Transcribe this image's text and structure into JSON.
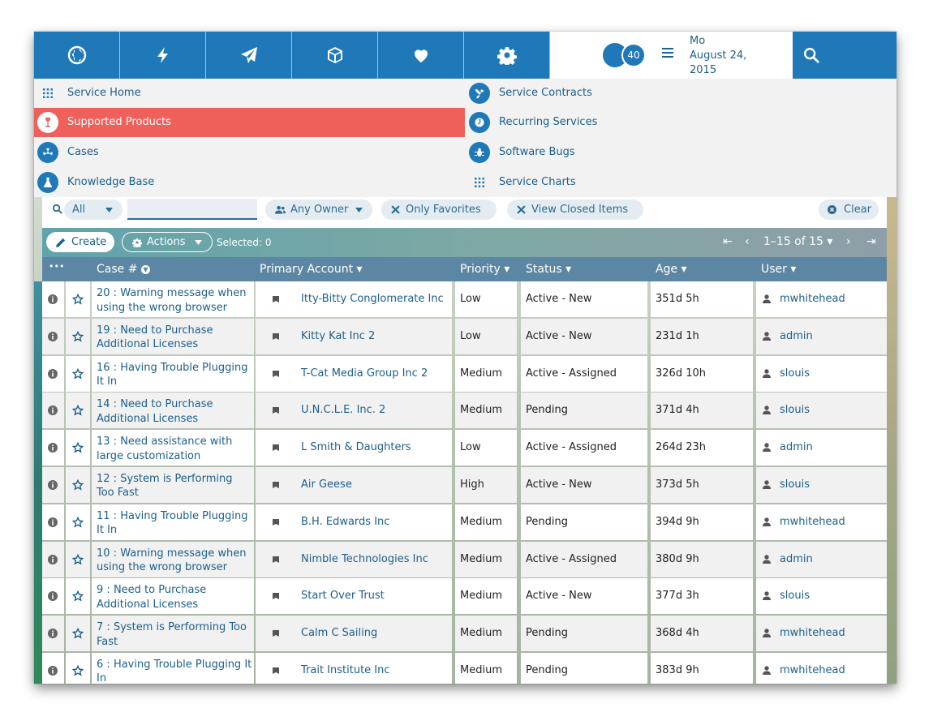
{
  "topbar": {
    "nav_icons": [
      "globe-icon",
      "lightning-icon",
      "paper-plane-icon",
      "cube-icon",
      "heart-icon",
      "gear-icon"
    ],
    "notification_count": "40",
    "date_line1": "Mo",
    "date_line2": "August 24,",
    "date_line3": "2015",
    "search_icon": "search-icon"
  },
  "menu": {
    "left": [
      {
        "label": "Service Home",
        "icon": "grid-icon"
      },
      {
        "label": "Supported Products",
        "icon": "wine-glass-icon",
        "active": true
      },
      {
        "label": "Cases",
        "icon": "radiation-icon"
      },
      {
        "label": "Knowledge Base",
        "icon": "flask-icon"
      }
    ],
    "right": [
      {
        "label": "Service Contracts",
        "icon": "tools-icon"
      },
      {
        "label": "Recurring Services",
        "icon": "clock-icon"
      },
      {
        "label": "Software Bugs",
        "icon": "bug-icon"
      },
      {
        "label": "Service Charts",
        "icon": "grid-icon"
      }
    ]
  },
  "filters": {
    "scope_value": "All",
    "search_value": "",
    "owner_label": "Any Owner",
    "favorites_label": "Only Favorites",
    "closed_label": "View Closed Items",
    "clear_label": "Clear"
  },
  "actions": {
    "create_label": "Create",
    "actions_label": "Actions",
    "selected_text": "Selected: 0",
    "page_range": "1–15 of 15"
  },
  "table": {
    "columns": {
      "more": "•••",
      "case": "Case #",
      "account": "Primary Account",
      "priority": "Priority",
      "status": "Status",
      "age": "Age",
      "user": "User"
    },
    "rows": [
      {
        "num": "20",
        "title": "Warning message when using the wrong browser",
        "account": "Itty-Bitty Conglomerate Inc",
        "priority": "Low",
        "status": "Active - New",
        "age": "351d 5h",
        "user": "mwhitehead"
      },
      {
        "num": "19",
        "title": "Need to Purchase Additional Licenses",
        "account": "Kitty Kat Inc 2",
        "priority": "Low",
        "status": "Active - New",
        "age": "231d 1h",
        "user": "admin"
      },
      {
        "num": "16",
        "title": "Having Trouble Plugging It In",
        "account": "T-Cat Media Group Inc 2",
        "priority": "Medium",
        "status": "Active - Assigned",
        "age": "326d 10h",
        "user": "slouis"
      },
      {
        "num": "14",
        "title": "Need to Purchase Additional Licenses",
        "account": "U.N.C.L.E. Inc. 2",
        "priority": "Medium",
        "status": "Pending",
        "age": "371d 4h",
        "user": "slouis"
      },
      {
        "num": "13",
        "title": "Need assistance with large customization",
        "account": "L Smith & Daughters",
        "priority": "Low",
        "status": "Active - Assigned",
        "age": "264d 23h",
        "user": "admin"
      },
      {
        "num": "12",
        "title": "System is Performing Too Fast",
        "account": "Air Geese",
        "priority": "High",
        "status": "Active - New",
        "age": "373d 5h",
        "user": "slouis"
      },
      {
        "num": "11",
        "title": "Having Trouble Plugging It In",
        "account": "B.H. Edwards Inc",
        "priority": "Medium",
        "status": "Pending",
        "age": "394d 9h",
        "user": "mwhitehead"
      },
      {
        "num": "10",
        "title": "Warning message when using the wrong browser",
        "account": "Nimble Technologies Inc",
        "priority": "Medium",
        "status": "Active - Assigned",
        "age": "380d 9h",
        "user": "admin"
      },
      {
        "num": "9",
        "title": "Need to Purchase Additional Licenses",
        "account": "Start Over Trust",
        "priority": "Medium",
        "status": "Active - New",
        "age": "377d 3h",
        "user": "slouis"
      },
      {
        "num": "7",
        "title": "System is Performing Too Fast",
        "account": "Calm C Sailing",
        "priority": "Medium",
        "status": "Pending",
        "age": "368d 4h",
        "user": "mwhitehead"
      },
      {
        "num": "6",
        "title": "Having Trouble Plugging It In",
        "account": "Trait Institute Inc",
        "priority": "Medium",
        "status": "Pending",
        "age": "383d 9h",
        "user": "mwhitehead"
      }
    ]
  },
  "colors": {
    "brand_blue": "#1f79b9",
    "active_menu": "#f0605a",
    "link": "#1c5f8c",
    "header": "#5c87a4"
  }
}
